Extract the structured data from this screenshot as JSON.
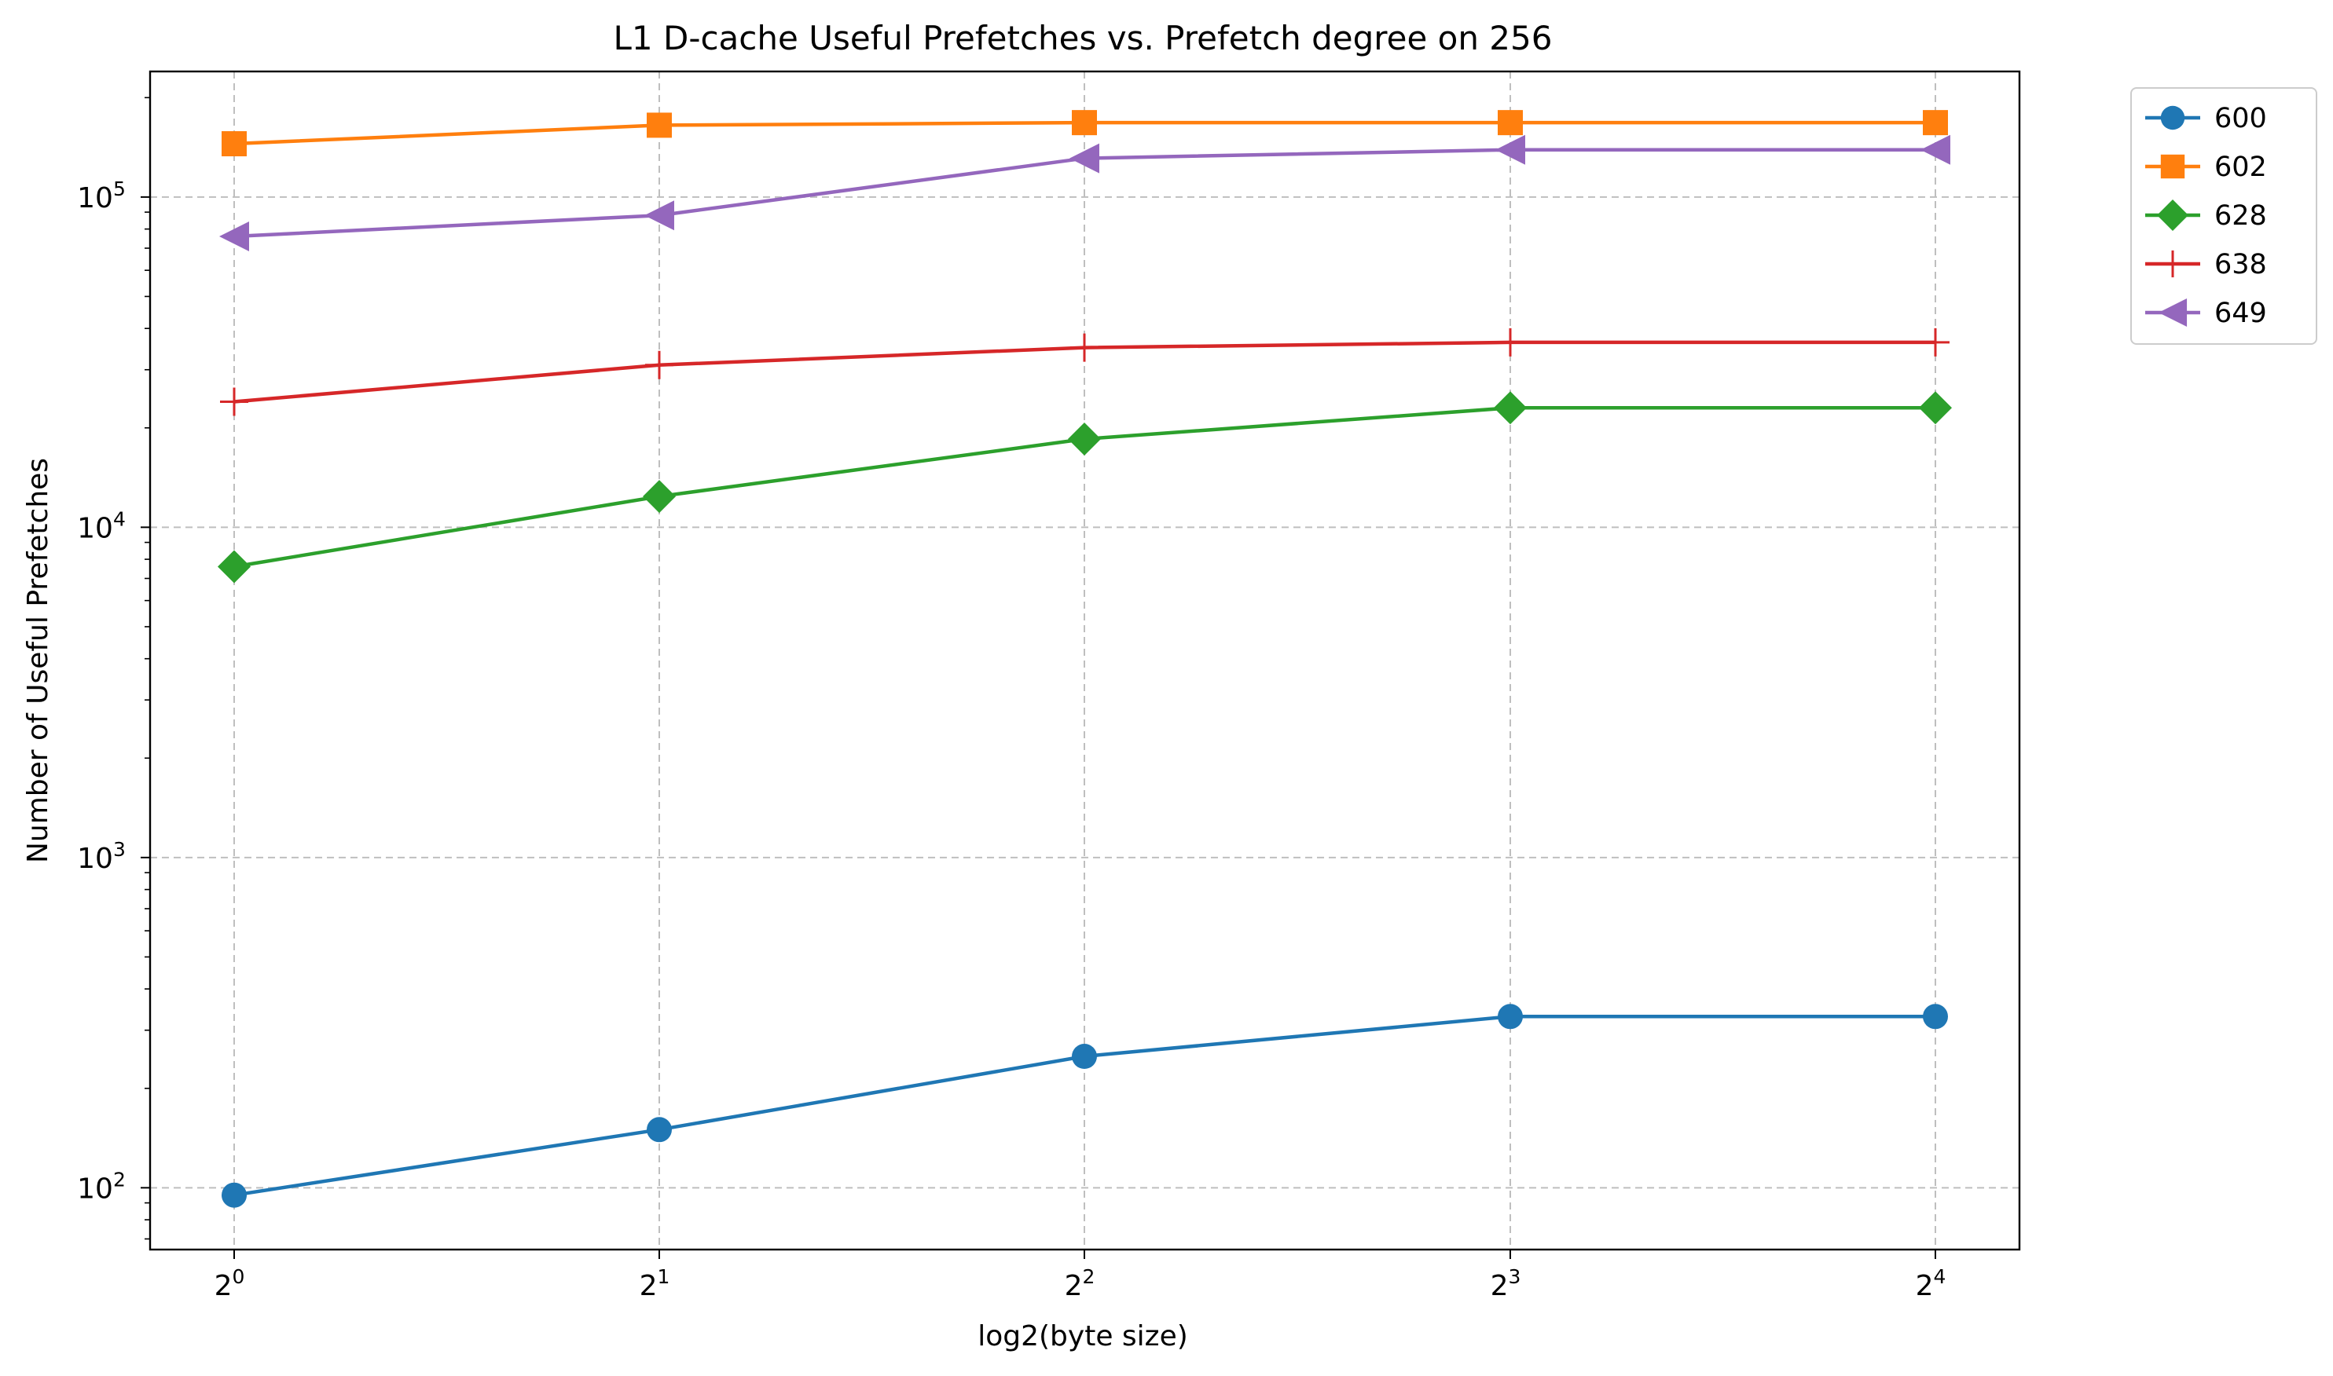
{
  "chart_data": {
    "type": "line",
    "title": "L1 D-cache Useful Prefetches vs. Prefetch degree on 256",
    "xlabel": "log2(byte size)",
    "ylabel": "Number of Useful Prefetches",
    "yscale": "log",
    "ylim": [
      65,
      240000
    ],
    "grid": true,
    "legend_position": "outside-top-right",
    "x": [
      1,
      2,
      4,
      8,
      16
    ],
    "x_tick_labels": [
      {
        "base": "2",
        "exp": "0"
      },
      {
        "base": "2",
        "exp": "1"
      },
      {
        "base": "2",
        "exp": "2"
      },
      {
        "base": "2",
        "exp": "3"
      },
      {
        "base": "2",
        "exp": "4"
      }
    ],
    "y_tick_labels": [
      {
        "value": 100,
        "base": "10",
        "exp": "2"
      },
      {
        "value": 1000,
        "base": "10",
        "exp": "3"
      },
      {
        "value": 10000,
        "base": "10",
        "exp": "4"
      },
      {
        "value": 100000,
        "base": "10",
        "exp": "5"
      }
    ],
    "series": [
      {
        "name": "600",
        "color": "#1f77b4",
        "marker": "circle",
        "values": [
          95,
          150,
          250,
          330,
          330
        ]
      },
      {
        "name": "602",
        "color": "#ff7f0e",
        "marker": "square",
        "values": [
          145000,
          165000,
          168000,
          168000,
          168000
        ]
      },
      {
        "name": "628",
        "color": "#2ca02c",
        "marker": "diamond",
        "values": [
          7600,
          12400,
          18500,
          23000,
          23000
        ]
      },
      {
        "name": "638",
        "color": "#d62728",
        "marker": "plus",
        "values": [
          24000,
          31000,
          35000,
          36300,
          36300
        ]
      },
      {
        "name": "649",
        "color": "#9467bd",
        "marker": "triangle-left",
        "values": [
          76000,
          88000,
          131000,
          139000,
          139000
        ]
      }
    ]
  }
}
